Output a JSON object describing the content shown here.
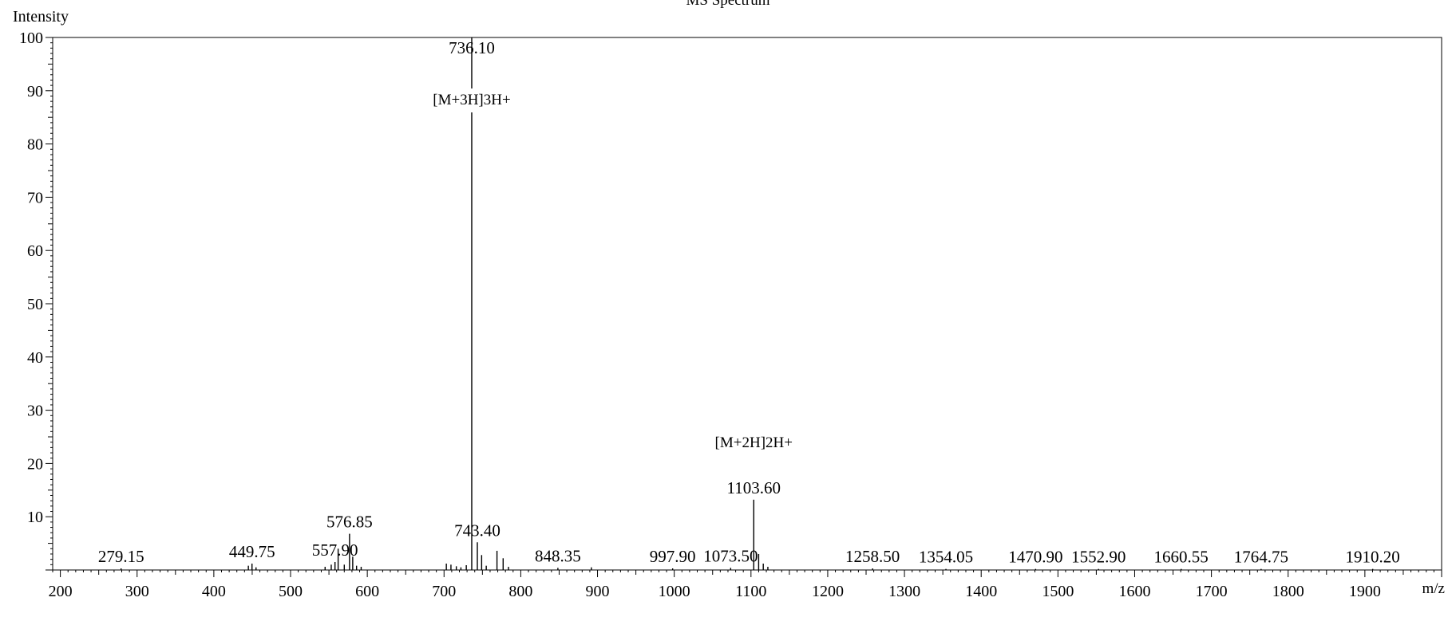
{
  "chart_data": {
    "type": "stem",
    "title": "MS Spectrum",
    "xlabel": "m/z",
    "ylabel": "Intensity",
    "xlim": [
      190,
      2000
    ],
    "ylim": [
      0,
      100
    ],
    "x_ticks": [
      200,
      300,
      400,
      500,
      600,
      700,
      800,
      900,
      1000,
      1100,
      1200,
      1300,
      1400,
      1500,
      1600,
      1700,
      1800,
      1900
    ],
    "y_ticks": [
      10,
      20,
      30,
      40,
      50,
      60,
      70,
      80,
      90,
      100
    ],
    "grid": false,
    "peaks": [
      {
        "mz": 279.15,
        "intensity": 0.3,
        "label": "279.15"
      },
      {
        "mz": 445.0,
        "intensity": 0.8
      },
      {
        "mz": 449.75,
        "intensity": 1.2,
        "label": "449.75"
      },
      {
        "mz": 455.0,
        "intensity": 0.5
      },
      {
        "mz": 545.0,
        "intensity": 0.6
      },
      {
        "mz": 553.0,
        "intensity": 1.0
      },
      {
        "mz": 557.9,
        "intensity": 1.5,
        "label": "557.90"
      },
      {
        "mz": 562.0,
        "intensity": 4.0
      },
      {
        "mz": 570.0,
        "intensity": 1.0
      },
      {
        "mz": 576.85,
        "intensity": 6.8,
        "label": "576.85"
      },
      {
        "mz": 581.0,
        "intensity": 2.5
      },
      {
        "mz": 586.0,
        "intensity": 0.8
      },
      {
        "mz": 592.0,
        "intensity": 0.6
      },
      {
        "mz": 703.0,
        "intensity": 1.2
      },
      {
        "mz": 709.0,
        "intensity": 1.0
      },
      {
        "mz": 716.0,
        "intensity": 0.7
      },
      {
        "mz": 722.0,
        "intensity": 0.5
      },
      {
        "mz": 729.0,
        "intensity": 0.9
      },
      {
        "mz": 736.1,
        "intensity": 100.0,
        "label": "736.10",
        "annotation": "[M+3H]3H+"
      },
      {
        "mz": 743.4,
        "intensity": 5.2,
        "label": "743.40"
      },
      {
        "mz": 749.0,
        "intensity": 2.8
      },
      {
        "mz": 755.0,
        "intensity": 0.8
      },
      {
        "mz": 769.0,
        "intensity": 3.6
      },
      {
        "mz": 777.0,
        "intensity": 2.2
      },
      {
        "mz": 784.0,
        "intensity": 0.6
      },
      {
        "mz": 848.35,
        "intensity": 0.4,
        "label": "848.35"
      },
      {
        "mz": 892.0,
        "intensity": 0.5
      },
      {
        "mz": 997.9,
        "intensity": 0.3,
        "label": "997.90"
      },
      {
        "mz": 1073.5,
        "intensity": 0.4,
        "label": "1073.50"
      },
      {
        "mz": 1103.6,
        "intensity": 13.2,
        "label": "1103.60",
        "annotation": "[M+2H]2H+"
      },
      {
        "mz": 1110.0,
        "intensity": 3.0
      },
      {
        "mz": 1116.0,
        "intensity": 1.2
      },
      {
        "mz": 1122.0,
        "intensity": 0.6
      },
      {
        "mz": 1258.5,
        "intensity": 0.3,
        "label": "1258.50"
      },
      {
        "mz": 1354.05,
        "intensity": 0.2,
        "label": "1354.05"
      },
      {
        "mz": 1470.9,
        "intensity": 0.2,
        "label": "1470.90"
      },
      {
        "mz": 1552.9,
        "intensity": 0.2,
        "label": "1552.90"
      },
      {
        "mz": 1660.55,
        "intensity": 0.2,
        "label": "1660.55"
      },
      {
        "mz": 1764.75,
        "intensity": 0.2,
        "label": "1764.75"
      },
      {
        "mz": 1910.2,
        "intensity": 0.2,
        "label": "1910.20"
      }
    ]
  }
}
